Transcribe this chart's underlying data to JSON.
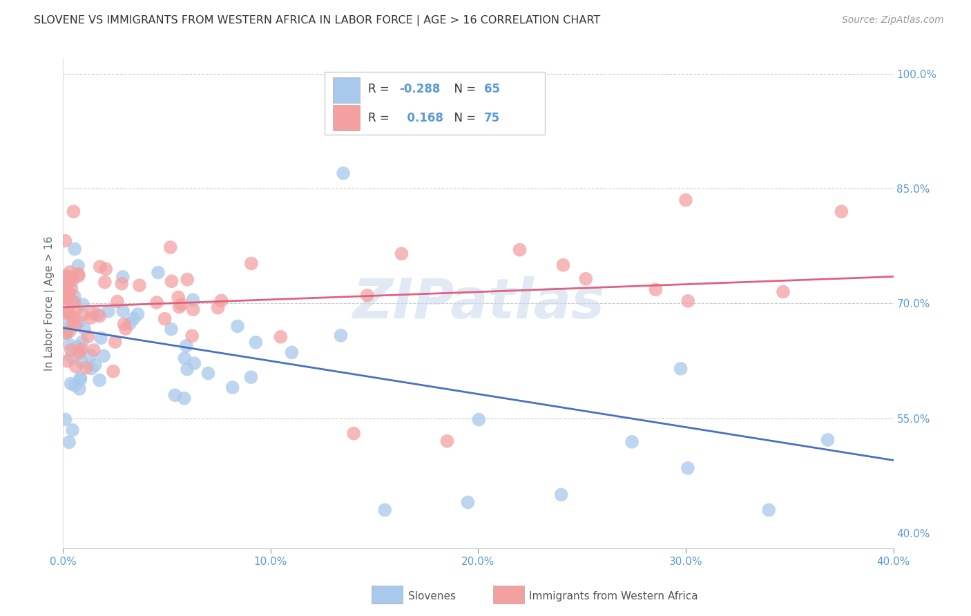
{
  "title": "SLOVENE VS IMMIGRANTS FROM WESTERN AFRICA IN LABOR FORCE | AGE > 16 CORRELATION CHART",
  "source": "Source: ZipAtlas.com",
  "ylabel": "In Labor Force | Age > 16",
  "xlim": [
    0.0,
    0.4
  ],
  "ylim": [
    0.38,
    1.02
  ],
  "blue_color": "#A8C8EC",
  "pink_color": "#F4A0A0",
  "blue_line_color": "#4472C4",
  "pink_line_color": "#E06080",
  "axis_color": "#5B9BD5",
  "grid_color": "#CCCCCC",
  "watermark": "ZIPatlas",
  "blue_R": "-0.288",
  "blue_N": "65",
  "pink_R": "0.168",
  "pink_N": "75",
  "legend_label_blue": "Slovenes",
  "legend_label_pink": "Immigrants from Western Africa",
  "blue_line_x0": 0.0,
  "blue_line_y0": 0.668,
  "blue_line_x1": 0.4,
  "blue_line_y1": 0.495,
  "pink_line_x0": 0.0,
  "pink_line_y0": 0.695,
  "pink_line_x1": 0.4,
  "pink_line_y1": 0.735
}
